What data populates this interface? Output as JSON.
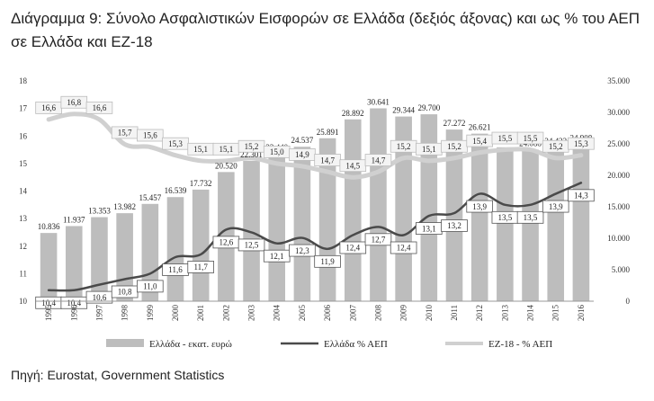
{
  "title": "Διάγραμμα 9: Σύνολο Ασφαλιστικών Εισφορών σε Ελλάδα (δεξιός άξονας) και ως % του ΑΕΠ σε Ελλάδα και ΕΖ-18",
  "source": "Πηγή: Eurostat, Government Statistics",
  "chart_data": {
    "type": "bar+line",
    "categories": [
      "1995",
      "1996",
      "1997",
      "1998",
      "1999",
      "2000",
      "2001",
      "2002",
      "2003",
      "2004",
      "2005",
      "2006",
      "2007",
      "2008",
      "2009",
      "2010",
      "2011",
      "2012",
      "2013",
      "2014",
      "2015",
      "2016"
    ],
    "series": [
      {
        "name": "Ελλάδα - εκατ. ευρώ",
        "type": "bar",
        "axis": "right",
        "values": [
          10836,
          11937,
          13353,
          13982,
          15457,
          16539,
          17732,
          20520,
          22301,
          23440,
          24537,
          25891,
          28892,
          30641,
          29344,
          29700,
          27272,
          26621,
          24455,
          24088,
          24422,
          24908
        ],
        "labels": [
          "10.836",
          "11.937",
          "13.353",
          "13.982",
          "15.457",
          "16.539",
          "17.732",
          "20.520",
          "22.301",
          "23.440",
          "24.537",
          "25.891",
          "28.892",
          "30.641",
          "29.344",
          "29.700",
          "27.272",
          "26.621",
          "24.455",
          "24.088",
          "24.422",
          "24.908"
        ],
        "color": "#bdbdbd"
      },
      {
        "name": "Ελλάδα % ΑΕΠ",
        "type": "line",
        "axis": "left",
        "values": [
          10.4,
          10.4,
          10.6,
          10.8,
          11.0,
          11.6,
          11.7,
          12.6,
          12.5,
          12.1,
          12.3,
          11.9,
          12.4,
          12.7,
          12.4,
          13.1,
          13.2,
          13.9,
          13.5,
          13.5,
          13.9,
          14.3
        ],
        "labels": [
          "10,4",
          "10,4",
          "10,6",
          "10,8",
          "11,0",
          "11,6",
          "11,7",
          "12,6",
          "12,5",
          "12,1",
          "12,3",
          "11,9",
          "12,4",
          "12,7",
          "12,4",
          "13,1",
          "13,2",
          "13,9",
          "13,5",
          "13,5",
          "13,9",
          "14,3"
        ],
        "color": "#4a4a4a"
      },
      {
        "name": "ΕΖ-18 - % ΑΕΠ",
        "type": "line",
        "axis": "left",
        "values": [
          16.6,
          16.8,
          16.6,
          15.7,
          15.6,
          15.3,
          15.1,
          15.1,
          15.2,
          15.0,
          14.9,
          14.7,
          14.5,
          14.7,
          15.2,
          15.1,
          15.2,
          15.4,
          15.5,
          15.5,
          15.2,
          15.3
        ],
        "labels": [
          "16,6",
          "16,8",
          "16,6",
          "15,7",
          "15,6",
          "15,3",
          "15,1",
          "15,1",
          "15,2",
          "15,0",
          "14,9",
          "14,7",
          "14,5",
          "14,7",
          "15,2",
          "15,1",
          "15,2",
          "15,4",
          "15,5",
          "15,5",
          "15,2",
          "15,3"
        ],
        "color": "#d0d0d0"
      }
    ],
    "yleft": {
      "min": 10,
      "max": 18,
      "ticks": [
        "10",
        "11",
        "12",
        "13",
        "14",
        "15",
        "16",
        "17",
        "18"
      ]
    },
    "yright": {
      "min": 0,
      "max": 35000,
      "ticks": [
        "0",
        "5.000",
        "10.000",
        "15.000",
        "20.000",
        "25.000",
        "30.000",
        "35.000"
      ]
    },
    "grid": false,
    "legend_position": "bottom"
  }
}
